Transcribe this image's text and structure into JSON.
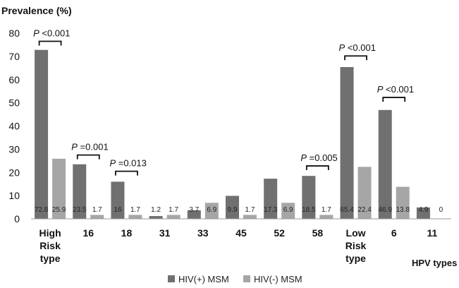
{
  "chart_data": {
    "type": "bar",
    "title": "",
    "ylabel": "Prevalence (%)",
    "xlabel": "HPV types",
    "ylim": [
      0,
      80
    ],
    "yticks": [
      0,
      10,
      20,
      30,
      40,
      50,
      60,
      70,
      80
    ],
    "grid": false,
    "legend_position": "bottom",
    "categories": [
      [
        "High",
        "Risk",
        "type"
      ],
      [
        "16"
      ],
      [
        "18"
      ],
      [
        "31"
      ],
      [
        "33"
      ],
      [
        "45"
      ],
      [
        "52"
      ],
      [
        "58"
      ],
      [
        "Low",
        "Risk",
        "type"
      ],
      [
        "6"
      ],
      [
        "11"
      ]
    ],
    "series": [
      {
        "name": "HIV(+) MSM",
        "color": "#707070",
        "values": [
          72.8,
          23.5,
          16,
          1.2,
          3.7,
          9.9,
          17.3,
          18.5,
          65.4,
          46.9,
          4.9
        ],
        "labels": [
          "72.8",
          "23.5",
          "16",
          "1.2",
          "3.7",
          "9.9",
          "17.3",
          "18.5",
          "65.4",
          "46.9",
          "4.9"
        ]
      },
      {
        "name": "HIV(-) MSM",
        "color": "#a6a6a6",
        "values": [
          25.9,
          1.7,
          1.7,
          1.7,
          6.9,
          1.7,
          6.9,
          1.7,
          22.4,
          13.8,
          0
        ],
        "labels": [
          "25.9",
          "1.7",
          "1.7",
          "1.7",
          "6.9",
          "1.7",
          "6.9",
          "1.7",
          "22.4",
          "13.8",
          "0"
        ]
      }
    ],
    "annotations": [
      {
        "category_index": 0,
        "p_letter": "P",
        "text": " <0.001",
        "bracket_y": 76.5
      },
      {
        "category_index": 1,
        "p_letter": "P",
        "text": " =0.001",
        "bracket_y": 27.5
      },
      {
        "category_index": 2,
        "p_letter": "P",
        "text": " =0.013",
        "bracket_y": 20.5
      },
      {
        "category_index": 7,
        "p_letter": "P",
        "text": " =0.005",
        "bracket_y": 22.8
      },
      {
        "category_index": 8,
        "p_letter": "P",
        "text": " <0.001",
        "bracket_y": 70.2
      },
      {
        "category_index": 9,
        "p_letter": "P",
        "text": " <0.001",
        "bracket_y": 52.3
      }
    ]
  }
}
